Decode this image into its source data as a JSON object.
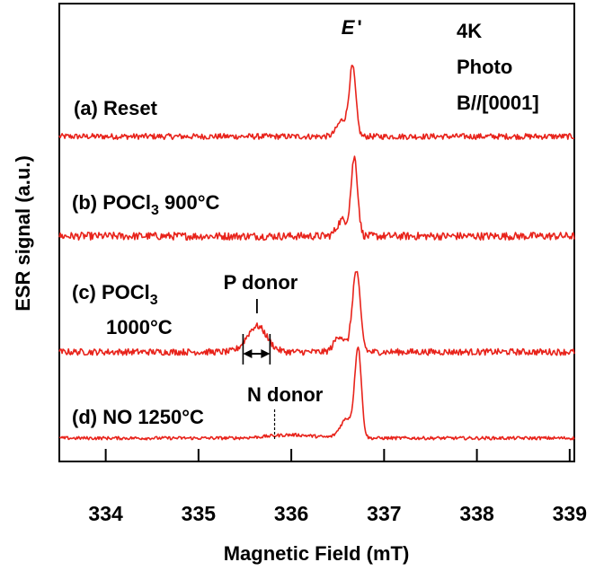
{
  "chart_data": {
    "type": "line",
    "title": "",
    "xlabel": "Magnetic Field (mT)",
    "ylabel": "ESR signal (a.u.)",
    "xlim": [
      333.5,
      339.05
    ],
    "xticks": [
      "334",
      "335",
      "336",
      "337",
      "338",
      "339"
    ],
    "xtick_values": [
      334,
      335,
      336,
      337,
      338,
      339
    ],
    "grid": false,
    "legend": "none",
    "line_color": "#e8231b",
    "conditions": [
      "4K",
      "Photo",
      "B//[0001]"
    ],
    "series": [
      {
        "label": "(a) Reset",
        "noise": 0.45,
        "peaks": [
          {
            "center": 336.66,
            "width": 0.05,
            "height": 10.5
          },
          {
            "center": 336.55,
            "width": 0.08,
            "height": 2.5
          }
        ]
      },
      {
        "label_main": "(b) POCl",
        "label_sub": "3",
        "label_tail": " 900°C",
        "noise": 0.6,
        "peaks": [
          {
            "center": 336.68,
            "width": 0.05,
            "height": 12.0
          },
          {
            "center": 336.55,
            "width": 0.08,
            "height": 2.5
          }
        ]
      },
      {
        "label_main": "(c) POCl",
        "label_sub": "3",
        "label_line2": "1000°C",
        "noise": 0.5,
        "peaks": [
          {
            "center": 336.7,
            "width": 0.06,
            "height": 12.5
          },
          {
            "center": 336.52,
            "width": 0.08,
            "height": 2.5
          },
          {
            "center": 335.63,
            "width": 0.15,
            "height": 4.0
          }
        ]
      },
      {
        "label": "(d) NO 1250°C",
        "noise": 0.25,
        "peaks": [
          {
            "center": 336.72,
            "width": 0.05,
            "height": 13.5
          },
          {
            "center": 336.6,
            "width": 0.1,
            "height": 3.0
          },
          {
            "center": 336.0,
            "width": 0.35,
            "height": 0.5
          }
        ]
      }
    ],
    "annotations": {
      "e_prime": {
        "label": "E",
        "prime": "'",
        "x": 336.65
      },
      "p_donor": {
        "label": "P donor",
        "x": 335.63,
        "width_from": 335.48,
        "width_to": 335.77
      },
      "n_donor": {
        "label": "N donor",
        "x": 335.82
      }
    }
  }
}
